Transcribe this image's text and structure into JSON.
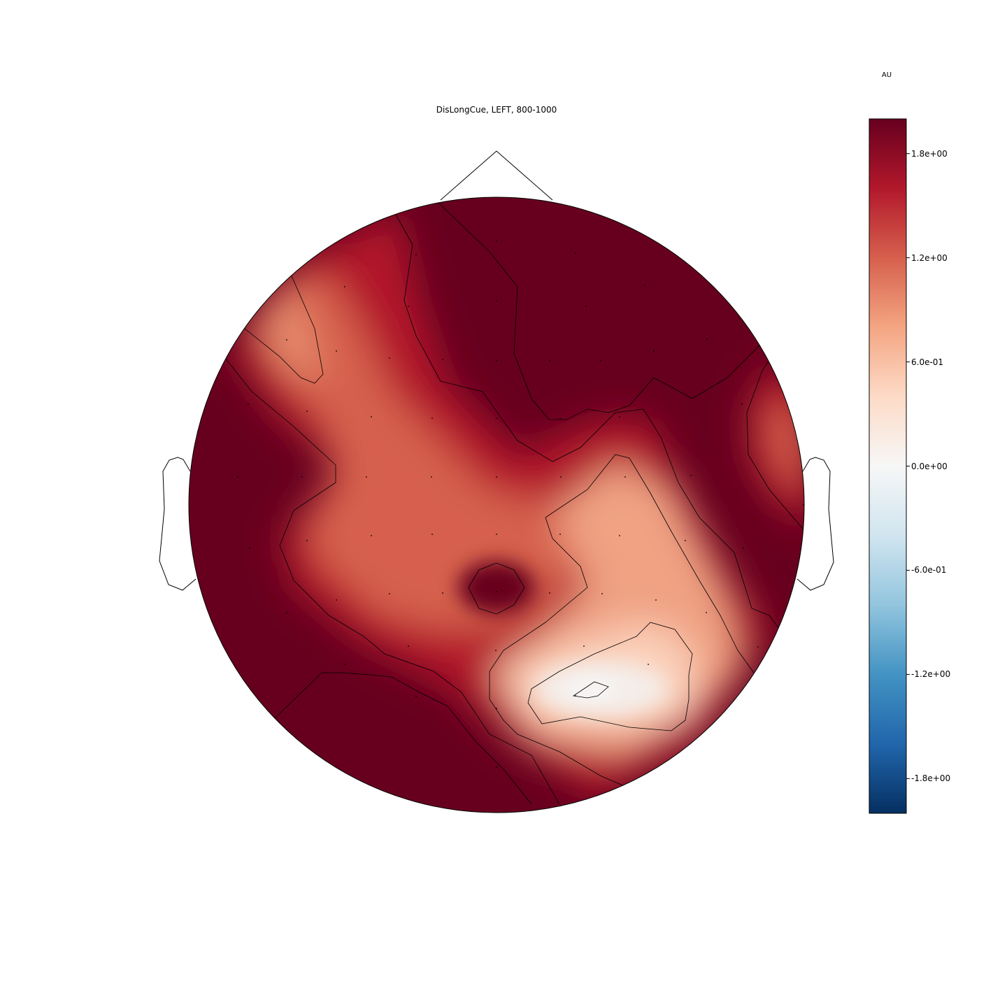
{
  "chart_data": {
    "type": "heatmap",
    "subtype": "eeg-topomap",
    "title": "DisLongCue, LEFT, 800-1000",
    "colorbar": {
      "label": "AU",
      "vmin": -2.0,
      "vmax": 2.0,
      "colormap": "RdBu_r",
      "colors": [
        "#053061",
        "#2166ac",
        "#4393c3",
        "#92c5de",
        "#d1e5f0",
        "#f7f7f7",
        "#fddbc7",
        "#f4a582",
        "#d6604d",
        "#b2182b",
        "#67001f"
      ],
      "ticks": [
        {
          "value": 1.8,
          "label": "1.8e+00"
        },
        {
          "value": 1.2,
          "label": "1.2e+00"
        },
        {
          "value": 0.6,
          "label": "6.0e-01"
        },
        {
          "value": 0.0,
          "label": "0.0e+00"
        },
        {
          "value": -0.6,
          "label": "-6.0e-01"
        },
        {
          "value": -1.2,
          "label": "-1.2e+00"
        },
        {
          "value": -1.8,
          "label": "-1.8e+00"
        }
      ]
    },
    "contour_levels": [
      0.1,
      0.6,
      1.2,
      1.9
    ],
    "sensors_shown": true,
    "head_outline": true
  }
}
